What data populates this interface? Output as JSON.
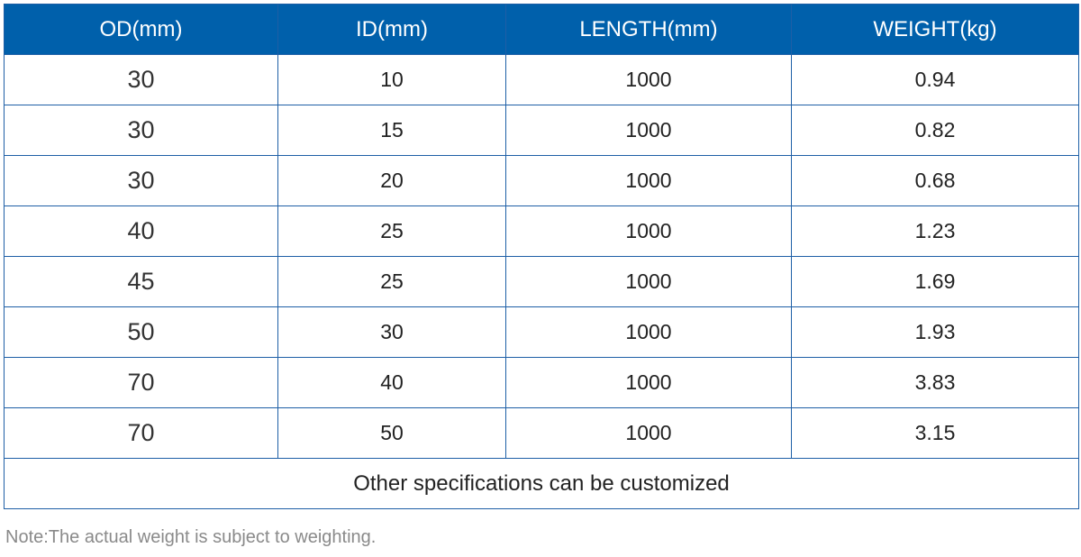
{
  "table": {
    "headers": [
      "OD(mm)",
      "ID(mm)",
      "LENGTH(mm)",
      "WEIGHT(kg)"
    ],
    "rows": [
      [
        "30",
        "10",
        "1000",
        "0.94"
      ],
      [
        "30",
        "15",
        "1000",
        "0.82"
      ],
      [
        "30",
        "20",
        "1000",
        "0.68"
      ],
      [
        "40",
        "25",
        "1000",
        "1.23"
      ],
      [
        "45",
        "25",
        "1000",
        "1.69"
      ],
      [
        "50",
        "30",
        "1000",
        "1.93"
      ],
      [
        "70",
        "40",
        "1000",
        "3.83"
      ],
      [
        "70",
        "50",
        "1000",
        "3.15"
      ]
    ],
    "footer": "Other specifications can be customized"
  },
  "note": "Note:The actual weight is subject to weighting.",
  "colors": {
    "header_bg": "#0060ab",
    "border": "#1e5fa6",
    "note": "#8a8a8a"
  }
}
